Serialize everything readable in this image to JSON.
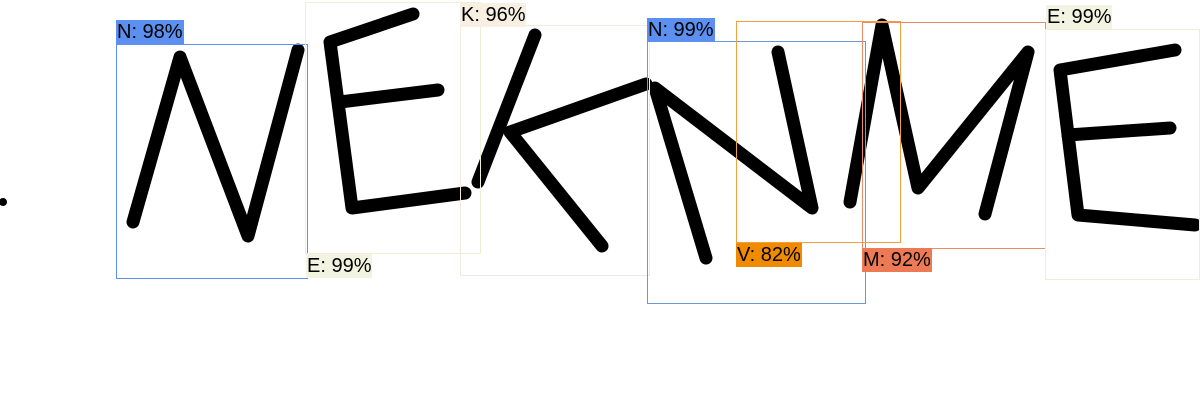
{
  "image": {
    "name": "handwritten-word-recognition",
    "letters_drawn": [
      "N",
      "E",
      "K",
      "N",
      "M",
      "E"
    ]
  },
  "detections": [
    {
      "id": "n1",
      "letter": "N",
      "confidence": "98%",
      "label": "N: 98%",
      "color": "#5b8ff0",
      "bg": "#5b8ff0",
      "text_color": "#000000"
    },
    {
      "id": "e1",
      "letter": "E",
      "confidence": "99%",
      "label": "E: 99%",
      "color": "#efefd7",
      "bg": "#f3f3e2",
      "text_color": "#000000"
    },
    {
      "id": "k1",
      "letter": "K",
      "confidence": "96%",
      "label": "K: 96%",
      "color": "#f2eadc",
      "bg": "#f6efe2",
      "text_color": "#000000"
    },
    {
      "id": "n2",
      "letter": "N",
      "confidence": "99%",
      "label": "N: 99%",
      "color": "#6f96db",
      "bg": "#5b8ff0",
      "text_color": "#000000"
    },
    {
      "id": "v1",
      "letter": "V",
      "confidence": "82%",
      "label": "V: 82%",
      "color": "#f0a040",
      "bg": "#f08a00",
      "text_color": "#000000"
    },
    {
      "id": "m1",
      "letter": "M",
      "confidence": "92%",
      "label": "M: 92%",
      "color": "#ee8a66",
      "bg": "#ee7a55",
      "text_color": "#000000"
    },
    {
      "id": "e2",
      "letter": "E",
      "confidence": "99%",
      "label": "E: 99%",
      "color": "#efefd7",
      "bg": "#f3f3e2",
      "text_color": "#000000"
    }
  ]
}
